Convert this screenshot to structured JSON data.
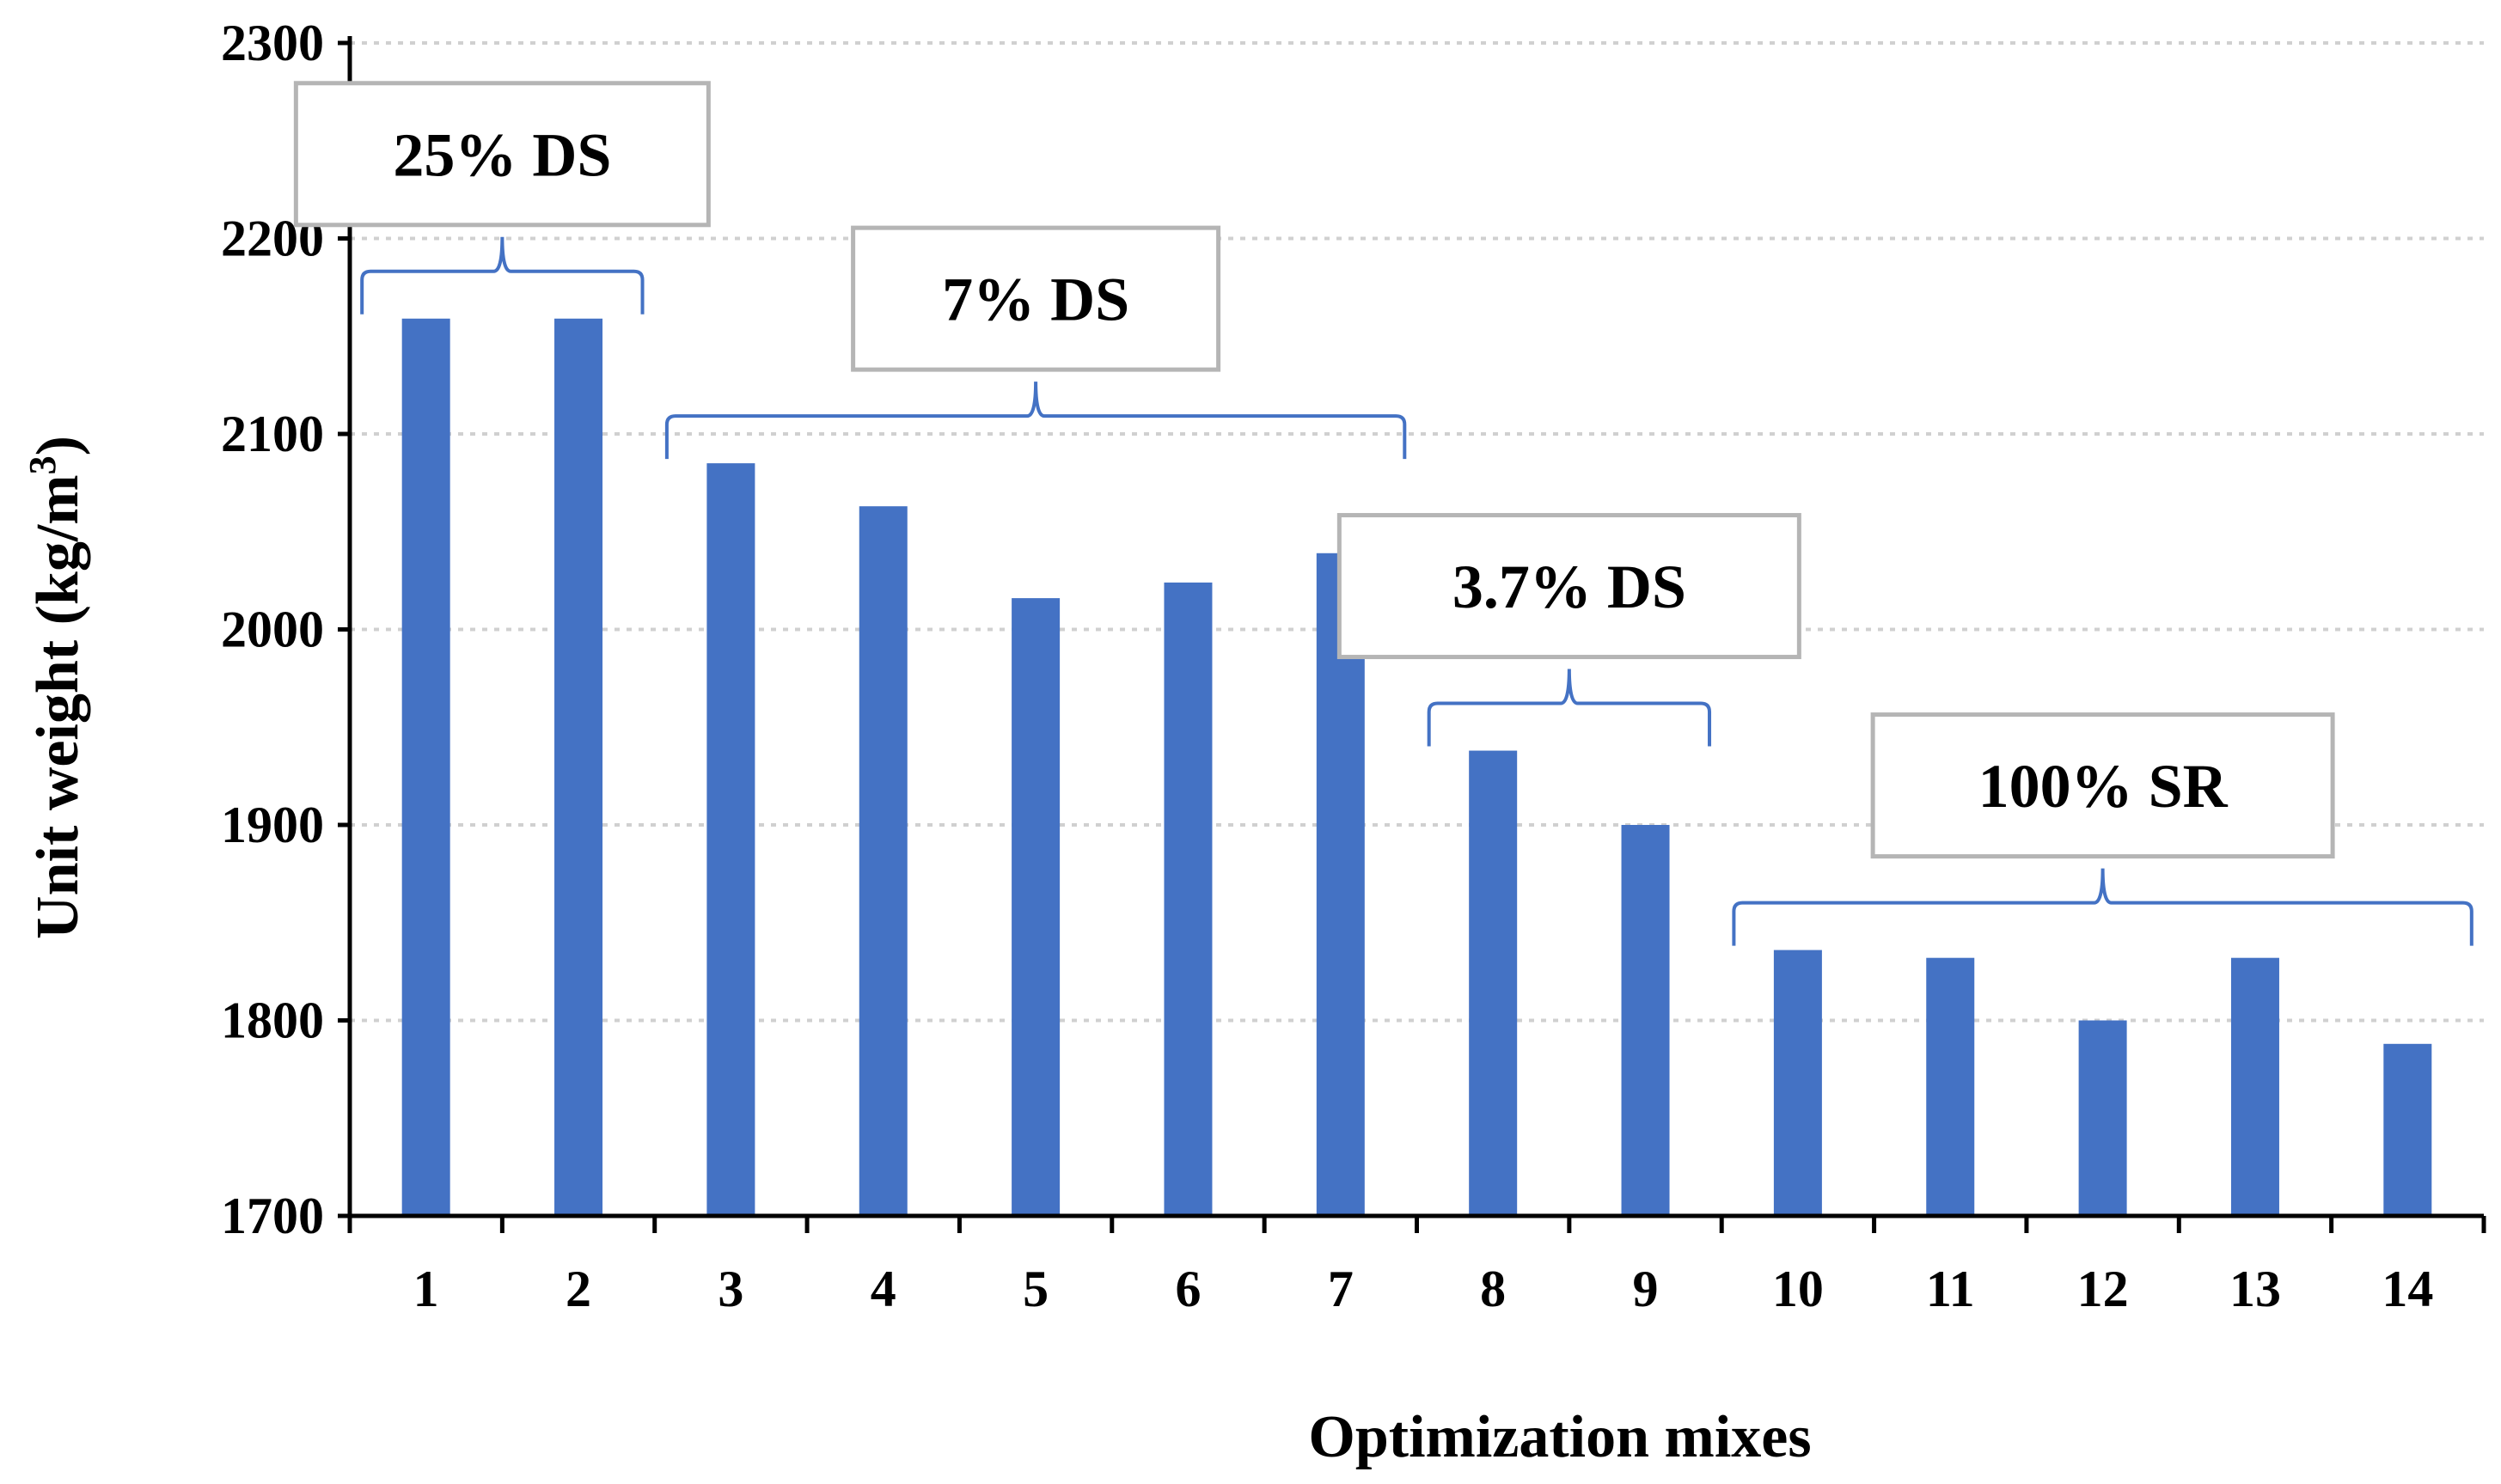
{
  "chart_data": {
    "type": "bar",
    "title": "",
    "xlabel": "Optimization mixes",
    "ylabel": "Unit weight (kg/m³)",
    "ylabel_main": "Unit weight (kg/m",
    "ylabel_sup": "3",
    "ylabel_close": ")",
    "categories": [
      "1",
      "2",
      "3",
      "4",
      "5",
      "6",
      "7",
      "8",
      "9",
      "10",
      "11",
      "12",
      "13",
      "14"
    ],
    "values": [
      2159,
      2159,
      2085,
      2063,
      2016,
      2024,
      2039,
      1938,
      1900,
      1836,
      1832,
      1800,
      1832,
      1788
    ],
    "ylim": [
      1700,
      2300
    ],
    "yticks": [
      1700,
      1800,
      1900,
      2000,
      2100,
      2200,
      2300
    ],
    "grid": true,
    "bar_color": "#4472c4",
    "annotations": [
      {
        "label": "25% DS",
        "from": 1,
        "to": 2
      },
      {
        "label": "7% DS",
        "from": 3,
        "to": 7
      },
      {
        "label": "3.7% DS",
        "from": 8,
        "to": 9
      },
      {
        "label": "100% SR",
        "from": 10,
        "to": 14
      }
    ]
  }
}
